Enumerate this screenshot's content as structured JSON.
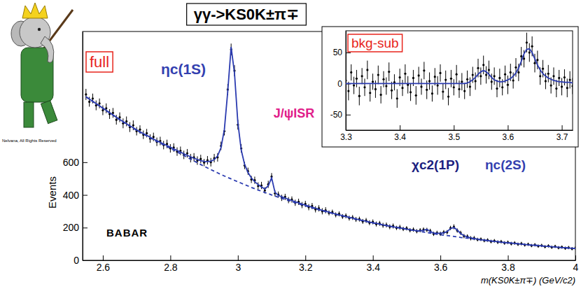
{
  "chart_data": [
    {
      "type": "scatter",
      "title": "γγ->KS0K±π∓",
      "x_label": "m(KS0K±π∓) (GeV/c2)",
      "y_label": "Events",
      "xlim": [
        2.54,
        4.0
      ],
      "xticks": [
        2.6,
        2.8,
        3,
        3.2,
        3.4,
        3.6,
        3.8,
        4
      ],
      "ylim": [
        0,
        1400
      ],
      "yticks": [
        0,
        200,
        400,
        600
      ],
      "x": [
        2.55,
        2.56,
        2.57,
        2.58,
        2.59,
        2.6,
        2.61,
        2.62,
        2.63,
        2.64,
        2.65,
        2.66,
        2.67,
        2.68,
        2.69,
        2.7,
        2.71,
        2.72,
        2.73,
        2.74,
        2.75,
        2.76,
        2.77,
        2.78,
        2.79,
        2.8,
        2.81,
        2.82,
        2.83,
        2.84,
        2.85,
        2.86,
        2.87,
        2.88,
        2.89,
        2.9,
        2.91,
        2.92,
        2.93,
        2.94,
        2.95,
        2.96,
        2.97,
        2.98,
        2.99,
        3.0,
        3.01,
        3.02,
        3.03,
        3.04,
        3.05,
        3.06,
        3.07,
        3.08,
        3.09,
        3.1,
        3.11,
        3.12,
        3.13,
        3.14,
        3.15,
        3.16,
        3.17,
        3.18,
        3.19,
        3.2,
        3.21,
        3.22,
        3.23,
        3.24,
        3.25,
        3.26,
        3.27,
        3.28,
        3.29,
        3.3,
        3.31,
        3.32,
        3.33,
        3.34,
        3.35,
        3.36,
        3.37,
        3.38,
        3.39,
        3.4,
        3.41,
        3.42,
        3.43,
        3.44,
        3.45,
        3.46,
        3.47,
        3.48,
        3.49,
        3.5,
        3.51,
        3.52,
        3.53,
        3.54,
        3.55,
        3.56,
        3.57,
        3.58,
        3.59,
        3.6,
        3.61,
        3.62,
        3.63,
        3.64,
        3.65,
        3.66,
        3.67,
        3.68,
        3.69,
        3.7,
        3.71,
        3.72,
        3.73,
        3.74,
        3.75,
        3.76,
        3.77,
        3.78,
        3.79,
        3.8,
        3.81,
        3.82,
        3.83,
        3.84,
        3.85,
        3.86,
        3.87,
        3.88,
        3.89,
        3.9,
        3.91,
        3.92,
        3.93,
        3.94,
        3.95,
        3.96,
        3.97,
        3.98,
        3.99,
        4.0
      ],
      "series": [
        {
          "type": "scatter",
          "marker": "point",
          "color": "#000000",
          "values": [
            1015,
            970,
            990,
            948,
            960,
            918,
            930,
            895,
            902,
            860,
            875,
            838,
            850,
            815,
            826,
            790,
            800,
            768,
            778,
            745,
            755,
            725,
            730,
            705,
            712,
            685,
            690,
            665,
            670,
            645,
            655,
            625,
            630,
            610,
            620,
            598,
            612,
            600,
            625,
            630,
            700,
            790,
            1045,
            1290,
            1160,
            830,
            685,
            580,
            545,
            495,
            490,
            455,
            458,
            428,
            465,
            512,
            410,
            402,
            382,
            388,
            368,
            372,
            352,
            358,
            338,
            345,
            325,
            332,
            312,
            318,
            300,
            306,
            290,
            295,
            278,
            284,
            268,
            272,
            258,
            262,
            250,
            252,
            238,
            244,
            230,
            235,
            222,
            226,
            214,
            216,
            205,
            210,
            198,
            202,
            192,
            196,
            184,
            188,
            178,
            184,
            188,
            186,
            180,
            162,
            168,
            162,
            172,
            172,
            198,
            205,
            182,
            168,
            148,
            146,
            135,
            136,
            127,
            129,
            121,
            124,
            115,
            119,
            111,
            114,
            106,
            110,
            102,
            106,
            98,
            102,
            94,
            98,
            90,
            95,
            87,
            91,
            83,
            88,
            80,
            85,
            77,
            81,
            74,
            78,
            71,
            75
          ],
          "errors": [
            34,
            30,
            30,
            30,
            30,
            30,
            30,
            30,
            30,
            30,
            30,
            30,
            30,
            30,
            30,
            26,
            26,
            26,
            26,
            26,
            26,
            26,
            26,
            26,
            26,
            26,
            26,
            26,
            26,
            26,
            26,
            26,
            26,
            26,
            26,
            22,
            26,
            26,
            26,
            26,
            26,
            26,
            34,
            36,
            34,
            30,
            26,
            22,
            22,
            22,
            22,
            22,
            22,
            19,
            22,
            22,
            19,
            19,
            19,
            19,
            19,
            19,
            19,
            19,
            19,
            19,
            19,
            19,
            19,
            19,
            19,
            19,
            15,
            15,
            15,
            15,
            15,
            15,
            15,
            15,
            15,
            15,
            15,
            15,
            15,
            15,
            15,
            15,
            15,
            15,
            15,
            15,
            13,
            15,
            13,
            13,
            13,
            13,
            13,
            13,
            13,
            13,
            13,
            13,
            13,
            13,
            13,
            13,
            13,
            15,
            13,
            13,
            13,
            13,
            13,
            13,
            11,
            11,
            11,
            11,
            11,
            11,
            11,
            11,
            11,
            11,
            11,
            11,
            10,
            11,
            10,
            10,
            10,
            10,
            10,
            10,
            10,
            10,
            10,
            10,
            10,
            10,
            10,
            10,
            10,
            10
          ]
        },
        {
          "type": "line",
          "line_style": "solid",
          "color": "#2b3bb0",
          "values": [
            1001,
            987,
            973,
            959,
            945,
            931,
            917,
            903,
            889,
            876,
            862,
            849,
            836,
            823,
            811,
            798,
            787,
            775,
            765,
            753,
            742,
            732,
            722,
            712,
            702,
            692,
            682,
            672,
            662,
            652,
            642,
            633,
            624,
            617,
            610,
            605,
            604,
            606,
            616,
            639,
            689,
            800,
            1032,
            1305,
            1145,
            842,
            674,
            587,
            537,
            504,
            481,
            463,
            449,
            436,
            456,
            505,
            416,
            397,
            389,
            381,
            373,
            366,
            358,
            352,
            344,
            338,
            331,
            325,
            319,
            312,
            306,
            301,
            295,
            289,
            283,
            278,
            273,
            268,
            263,
            258,
            253,
            248,
            243,
            239,
            234,
            230,
            226,
            222,
            217,
            213,
            209,
            205,
            202,
            198,
            195,
            191,
            188,
            184,
            181,
            180,
            184,
            190,
            177,
            166,
            165,
            165,
            168,
            176,
            194,
            201,
            185,
            164,
            151,
            143,
            138,
            133,
            130,
            126,
            124,
            121,
            118,
            116,
            114,
            111,
            109,
            107,
            105,
            103,
            101,
            99,
            97,
            95,
            93,
            92,
            90,
            88,
            86,
            85,
            83,
            82,
            80,
            78,
            77,
            75,
            74,
            72
          ]
        },
        {
          "type": "line",
          "line_style": "dashed",
          "color": "#2b3bb0",
          "values": [
            1000,
            986,
            972,
            958,
            944,
            930,
            916,
            902,
            888,
            874,
            860,
            847,
            834,
            821,
            808,
            795,
            784,
            772,
            761,
            749,
            738,
            727,
            717,
            706,
            696,
            685,
            674,
            663,
            652,
            641,
            630,
            619,
            608,
            597,
            586,
            575,
            565,
            555,
            545,
            535,
            525,
            516,
            507,
            498,
            489,
            480,
            472,
            463,
            455,
            446,
            438,
            430,
            423,
            415,
            408,
            400,
            393,
            386,
            379,
            372,
            365,
            359,
            352,
            346,
            339,
            333,
            327,
            321,
            315,
            309,
            303,
            298,
            292,
            287,
            281,
            276,
            271,
            266,
            261,
            256,
            251,
            247,
            242,
            238,
            233,
            229,
            225,
            221,
            216,
            212,
            208,
            204,
            201,
            197,
            194,
            190,
            187,
            183,
            180,
            176,
            173,
            170,
            167,
            163,
            160,
            157,
            154,
            151,
            149,
            146,
            143,
            140,
            138,
            135,
            133,
            130,
            128,
            125,
            123,
            120,
            118,
            116,
            114,
            111,
            109,
            107,
            105,
            103,
            101,
            99,
            97,
            95,
            93,
            92,
            90,
            88,
            86,
            85,
            83,
            82,
            80,
            78,
            77,
            75,
            74,
            72
          ]
        }
      ],
      "annotations": [
        {
          "text": "full",
          "color": "#e8251c"
        },
        {
          "text": "ηc(1S)",
          "color": "#3340b0"
        },
        {
          "text": "J/ψISR",
          "color": "#e0208a"
        },
        {
          "text": "χc2(1P)",
          "color": "#1c1f80"
        },
        {
          "text": "ηc(2S)",
          "color": "#3340b0"
        },
        {
          "text": "BABAR",
          "color": "#000000"
        },
        {
          "text": "Nelvana, All Rights Reserved",
          "color": "#000000"
        }
      ]
    },
    {
      "type": "scatter",
      "xlim": [
        3.3,
        3.72
      ],
      "xticks": [
        3.3,
        3.4,
        3.5,
        3.6,
        3.7
      ],
      "ylim": [
        -75,
        85
      ],
      "yticks": [
        -50,
        0,
        50
      ],
      "x": [
        3.3,
        3.305,
        3.31,
        3.315,
        3.32,
        3.325,
        3.33,
        3.335,
        3.34,
        3.345,
        3.35,
        3.355,
        3.36,
        3.365,
        3.37,
        3.375,
        3.38,
        3.385,
        3.39,
        3.395,
        3.4,
        3.405,
        3.41,
        3.415,
        3.42,
        3.425,
        3.43,
        3.435,
        3.44,
        3.445,
        3.45,
        3.455,
        3.46,
        3.465,
        3.47,
        3.475,
        3.48,
        3.485,
        3.49,
        3.495,
        3.5,
        3.505,
        3.51,
        3.515,
        3.52,
        3.525,
        3.53,
        3.535,
        3.54,
        3.545,
        3.55,
        3.555,
        3.56,
        3.565,
        3.57,
        3.575,
        3.58,
        3.585,
        3.59,
        3.595,
        3.6,
        3.605,
        3.61,
        3.615,
        3.62,
        3.625,
        3.63,
        3.635,
        3.64,
        3.645,
        3.65,
        3.655,
        3.66,
        3.665,
        3.67,
        3.675,
        3.68,
        3.685,
        3.69,
        3.695,
        3.7,
        3.705,
        3.71,
        3.715,
        3.72
      ],
      "series": [
        {
          "type": "scatter",
          "marker": "point",
          "color": "#000000",
          "values": [
            5,
            -12,
            18,
            -3,
            8,
            -20,
            12,
            -6,
            22,
            -15,
            3,
            -9,
            14,
            -18,
            7,
            -4,
            19,
            -11,
            2,
            -24,
            10,
            -7,
            16,
            -2,
            -14,
            9,
            -19,
            13,
            -5,
            21,
            -10,
            4,
            -16,
            11,
            -3,
            17,
            -13,
            6,
            -21,
            8,
            -6,
            15,
            -9,
            3,
            -12,
            7,
            -5,
            14,
            4,
            25,
            12,
            30,
            14,
            22,
            3,
            12,
            -8,
            9,
            -6,
            15,
            -2,
            18,
            5,
            26,
            18,
            44,
            40,
            66,
            50,
            60,
            33,
            38,
            12,
            24,
            4,
            16,
            -3,
            12,
            -8,
            9,
            -5,
            10,
            -7,
            6,
            -4
          ],
          "errors": [
            14,
            15,
            13,
            14,
            14,
            15,
            13,
            14,
            15,
            14,
            13,
            14,
            15,
            14,
            13,
            14,
            15,
            14,
            13,
            15,
            14,
            13,
            15,
            14,
            14,
            13,
            15,
            14,
            13,
            14,
            15,
            14,
            13,
            14,
            15,
            14,
            13,
            15,
            14,
            14,
            13,
            15,
            14,
            14,
            13,
            14,
            15,
            13,
            14,
            15,
            14,
            15,
            14,
            15,
            13,
            14,
            14,
            15,
            13,
            14,
            15,
            14,
            13,
            15,
            14,
            15,
            14,
            16,
            15,
            16,
            15,
            15,
            14,
            14,
            13,
            14,
            13,
            14,
            14,
            13,
            14,
            13,
            15,
            14,
            13
          ]
        },
        {
          "type": "line",
          "line_style": "solid",
          "color": "#2b3bb0",
          "values": [
            0,
            0,
            0,
            0,
            0,
            0,
            0,
            0,
            0,
            0,
            0,
            0,
            0,
            0,
            0,
            0,
            0,
            0,
            0,
            0,
            0,
            0,
            0,
            0,
            0,
            0,
            0,
            0,
            0,
            0,
            0,
            0,
            0,
            0,
            0,
            0,
            0,
            0,
            0,
            0,
            0,
            0,
            0,
            0,
            0,
            1,
            3,
            6,
            10,
            15,
            19,
            21,
            19,
            15,
            10,
            6,
            4,
            3,
            3,
            4,
            6,
            8,
            12,
            17,
            25,
            36,
            48,
            55,
            56,
            50,
            40,
            30,
            22,
            16,
            12,
            9,
            7,
            5,
            4,
            3,
            3,
            2,
            2,
            2,
            1
          ]
        }
      ],
      "annotations": [
        {
          "text": "bkg-sub",
          "color": "#e8251c"
        }
      ]
    }
  ]
}
